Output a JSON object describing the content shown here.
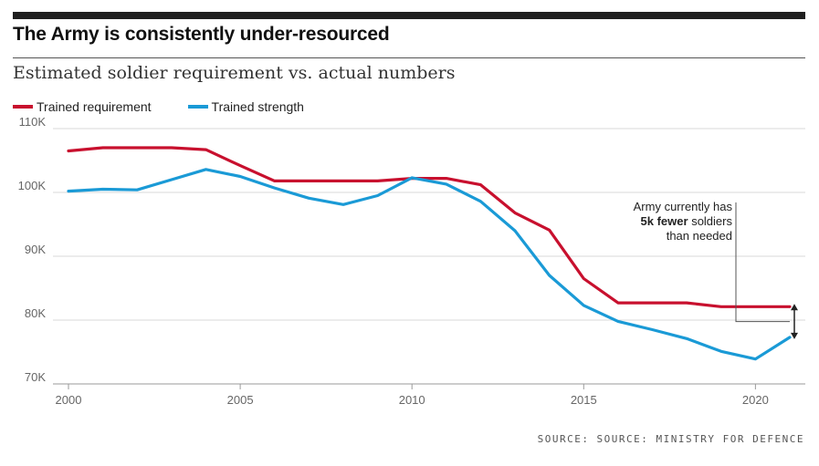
{
  "header": {
    "title": "The Army is consistently under-resourced",
    "subtitle": "Estimated soldier requirement vs. actual numbers"
  },
  "source": "SOURCE: SOURCE: MINISTRY FOR DEFENCE",
  "colors": {
    "requirement": "#c8102e",
    "strength": "#1a9ad6",
    "grid": "#d9d9d9",
    "bar": "#1f1f1f"
  },
  "chart_data": {
    "type": "line",
    "title": "The Army is consistently under-resourced",
    "subtitle": "Estimated soldier requirement vs. actual numbers",
    "xlabel": "",
    "ylabel": "",
    "xlim": [
      2000,
      2021
    ],
    "ylim": [
      70000,
      110000
    ],
    "grid": true,
    "legend_position": "top-left",
    "x_ticks": [
      {
        "value": 2000,
        "label": "2000"
      },
      {
        "value": 2005,
        "label": "2005"
      },
      {
        "value": 2010,
        "label": "2010"
      },
      {
        "value": 2015,
        "label": "2015"
      },
      {
        "value": 2020,
        "label": "2020"
      }
    ],
    "y_ticks": [
      {
        "value": 70000,
        "label": "70K"
      },
      {
        "value": 80000,
        "label": "80K"
      },
      {
        "value": 90000,
        "label": "90K"
      },
      {
        "value": 100000,
        "label": "100K"
      },
      {
        "value": 110000,
        "label": "110K"
      }
    ],
    "x": [
      2000,
      2001,
      2002,
      2003,
      2004,
      2005,
      2006,
      2007,
      2008,
      2009,
      2010,
      2011,
      2012,
      2013,
      2014,
      2015,
      2016,
      2017,
      2018,
      2019,
      2020,
      2021
    ],
    "series": [
      {
        "name": "Trained requirement",
        "color": "#c8102e",
        "values": [
          106500,
          107000,
          107000,
          107000,
          106700,
          104200,
          101800,
          101800,
          101800,
          101800,
          102200,
          102200,
          101200,
          96800,
          94100,
          86500,
          82700,
          82700,
          82700,
          82100,
          82100,
          82100
        ]
      },
      {
        "name": "Trained strength",
        "color": "#1a9ad6",
        "values": [
          100200,
          100500,
          100400,
          102000,
          103600,
          102500,
          100700,
          99100,
          98100,
          99500,
          102300,
          101300,
          98600,
          94000,
          87000,
          82300,
          79800,
          78500,
          77100,
          75100,
          73900,
          77300
        ]
      }
    ],
    "annotation": {
      "lines": [
        {
          "prefix": "Army currently has",
          "bold": ""
        },
        {
          "prefix": " soldiers",
          "bold": "5k fewer"
        },
        {
          "prefix": "than needed",
          "bold": ""
        }
      ],
      "gap_year": 2021,
      "gap_from": 82100,
      "gap_to": 77300
    }
  }
}
